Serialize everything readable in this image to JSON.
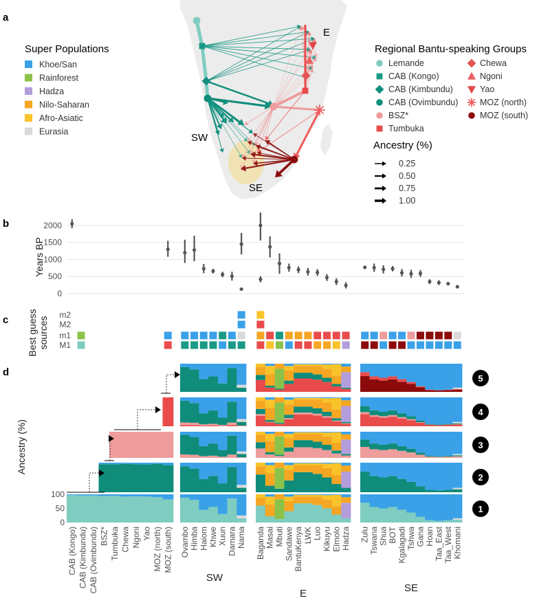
{
  "panel_labels": [
    "a",
    "b",
    "c",
    "d"
  ],
  "colors": {
    "Khoe/San": "#3aa1e8",
    "Rainforest": "#8bc34a",
    "Hadza": "#b39ddb",
    "Nilo-Saharan": "#f5a623",
    "Afro-Asiatic": "#f9c32a",
    "Eurasia": "#d9d9d9",
    "Lemande": "#7fccc0",
    "Kongo": "#1a9a86",
    "Kimbundu": "#138f7e",
    "Ovimbundu": "#0f8c7a",
    "BSZ": "#ee9c9c",
    "Tumbuka": "#e94b4b",
    "Chewa": "#e45454",
    "Ngoni": "#e86262",
    "Yao": "#e04747",
    "MOZN": "#ef5a5a",
    "MOZS": "#8b0b0b",
    "map": "#ececec",
    "ellipse": "#f3dfa2",
    "grid": "#e6e6e6",
    "point": "#555555"
  },
  "panel_a": {
    "legend1_title": "Super Populations",
    "legend1": [
      {
        "label": "Khoe/San",
        "color": "#3aa1e8"
      },
      {
        "label": "Rainforest",
        "color": "#8bc34a"
      },
      {
        "label": "Hadza",
        "color": "#b39ddb"
      },
      {
        "label": "Nilo-Saharan",
        "color": "#f5a623"
      },
      {
        "label": "Afro-Asiatic",
        "color": "#f9c32a"
      },
      {
        "label": "Eurasia",
        "color": "#d9d9d9"
      }
    ],
    "legend2_title": "Regional Bantu-speaking Groups",
    "legend2_left": [
      {
        "label": "Lemande",
        "color": "#7fccc0",
        "shape": "circle"
      },
      {
        "label": "CAB (Kongo)",
        "color": "#1a9a86",
        "shape": "square"
      },
      {
        "label": "CAB (Kimbundu)",
        "color": "#138f7e",
        "shape": "diamond"
      },
      {
        "label": "CAB (Ovimbundu)",
        "color": "#0f8c7a",
        "shape": "circle"
      },
      {
        "label": "BSZ*",
        "color": "#ee9c9c",
        "shape": "circle"
      },
      {
        "label": "Tumbuka",
        "color": "#e94b4b",
        "shape": "square"
      }
    ],
    "legend2_right": [
      {
        "label": "Chewa",
        "color": "#e45454",
        "shape": "diamond"
      },
      {
        "label": "Ngoni",
        "color": "#e86262",
        "shape": "triangle"
      },
      {
        "label": "Yao",
        "color": "#e04747",
        "shape": "triangle-down"
      },
      {
        "label": "MOZ (north)",
        "color": "#ef5a5a",
        "shape": "star"
      },
      {
        "label": "MOZ (south)",
        "color": "#8b0b0b",
        "shape": "circle"
      }
    ],
    "ancestry_title": "Ancestry (%)",
    "ancestry_levels": [
      {
        "label": "0.25",
        "value": 0.25
      },
      {
        "label": "0.50",
        "value": 0.5
      },
      {
        "label": "0.75",
        "value": 0.75
      },
      {
        "label": "1.00",
        "value": 1.0
      }
    ],
    "region_labels": [
      "E",
      "SW",
      "SE"
    ]
  },
  "chart_data": [
    {
      "type": "scatter",
      "panel": "b",
      "ylabel": "Years BP",
      "ylim": [
        0,
        2200
      ],
      "yticks": [
        0,
        500,
        1000,
        1500,
        2000
      ],
      "points": [
        {
          "group": "CAB (Kongo)",
          "y": 2050,
          "lo": 1920,
          "hi": 2180
        },
        {
          "group": "MOZ (south)",
          "y": 1300,
          "lo": 1080,
          "hi": 1550
        },
        {
          "group": "Ovambo",
          "y": 1200,
          "lo": 900,
          "hi": 1580
        },
        {
          "group": "Himba",
          "y": 1280,
          "lo": 950,
          "hi": 1700
        },
        {
          "group": "Haiom",
          "y": 730,
          "lo": 600,
          "hi": 870
        },
        {
          "group": "Khwe",
          "y": 660,
          "lo": 590,
          "hi": 730
        },
        {
          "group": "Xuun",
          "y": 560,
          "lo": 480,
          "hi": 640
        },
        {
          "group": "Damara",
          "y": 510,
          "lo": 380,
          "hi": 640
        },
        {
          "group": "Nama_a",
          "y": 1450,
          "lo": 1150,
          "hi": 1780
        },
        {
          "group": "Nama_b",
          "y": 130,
          "lo": 100,
          "hi": 160
        },
        {
          "group": "Baganda_a",
          "y": 2000,
          "lo": 1560,
          "hi": 2380
        },
        {
          "group": "Baganda_b",
          "y": 420,
          "lo": 330,
          "hi": 510
        },
        {
          "group": "Masai",
          "y": 1370,
          "lo": 1060,
          "hi": 1680
        },
        {
          "group": "Mbuti",
          "y": 880,
          "lo": 580,
          "hi": 1180
        },
        {
          "group": "Sandawe",
          "y": 760,
          "lo": 640,
          "hi": 880
        },
        {
          "group": "BantuKenya",
          "y": 700,
          "lo": 600,
          "hi": 800
        },
        {
          "group": "LWK",
          "y": 640,
          "lo": 530,
          "hi": 750
        },
        {
          "group": "Luo",
          "y": 620,
          "lo": 520,
          "hi": 720
        },
        {
          "group": "Kikuyu",
          "y": 470,
          "lo": 370,
          "hi": 570
        },
        {
          "group": "Elmolo",
          "y": 350,
          "lo": 250,
          "hi": 450
        },
        {
          "group": "Hadza",
          "y": 240,
          "lo": 150,
          "hi": 330
        },
        {
          "group": "Zulu",
          "y": 770,
          "lo": 740,
          "hi": 800
        },
        {
          "group": "Tswana",
          "y": 760,
          "lo": 640,
          "hi": 880
        },
        {
          "group": "Shua",
          "y": 710,
          "lo": 590,
          "hi": 830
        },
        {
          "group": "BOT",
          "y": 730,
          "lo": 650,
          "hi": 810
        },
        {
          "group": "Kgalagadi",
          "y": 610,
          "lo": 500,
          "hi": 720
        },
        {
          "group": "Tshwa",
          "y": 580,
          "lo": 460,
          "hi": 700
        },
        {
          "group": "Gana",
          "y": 590,
          "lo": 490,
          "hi": 690
        },
        {
          "group": "Hoan",
          "y": 350,
          "lo": 280,
          "hi": 420
        },
        {
          "group": "Taa_East",
          "y": 320,
          "lo": 250,
          "hi": 390
        },
        {
          "group": "Taa_West",
          "y": 290,
          "lo": 240,
          "hi": 340
        },
        {
          "group": "Khomani",
          "y": 200,
          "lo": 150,
          "hi": 250
        }
      ]
    },
    {
      "type": "table",
      "panel": "c",
      "ylabel": "Best guess sources",
      "rows": [
        "m2",
        "M2",
        "m1",
        "M1"
      ],
      "cells": [
        {
          "group": "CAB (Kongo)",
          "m1": "Rainforest",
          "M1": "Lemande"
        },
        {
          "group": "MOZ (south)",
          "m1": "Khoe/San",
          "M1": "Tumbuka"
        },
        {
          "group": "Ovambo",
          "m1": "Khoe/San",
          "M1": "Kongo"
        },
        {
          "group": "Himba",
          "m1": "Khoe/San",
          "M1": "Kongo"
        },
        {
          "group": "Haiom",
          "m1": "Khoe/San",
          "M1": "Kongo"
        },
        {
          "group": "Khwe",
          "m1": "Khoe/San",
          "M1": "Kongo"
        },
        {
          "group": "Xuun",
          "m1": "Kongo",
          "M1": "Khoe/San"
        },
        {
          "group": "Damara",
          "m1": "Khoe/San",
          "M1": "Kongo"
        },
        {
          "group": "Nama",
          "m2": "Khoe/San",
          "M2": "Khoe/San",
          "m1": "Eurasia",
          "M1": "Kongo"
        },
        {
          "group": "Baganda",
          "m2": "Afro-Asiatic",
          "M2": "Tumbuka",
          "m1": "Nilo-Saharan",
          "M1": "Tumbuka"
        },
        {
          "group": "Masai",
          "m1": "Tumbuka",
          "M1": "Afro-Asiatic"
        },
        {
          "group": "Mbuti",
          "m1": "Kongo",
          "M1": "Rainforest"
        },
        {
          "group": "Sandawe",
          "m1": "Nilo-Saharan",
          "M1": "Khoe/San"
        },
        {
          "group": "BantuKenya",
          "m1": "Nilo-Saharan",
          "M1": "Tumbuka"
        },
        {
          "group": "LWK",
          "m1": "Nilo-Saharan",
          "M1": "Tumbuka"
        },
        {
          "group": "Luo",
          "m1": "Tumbuka",
          "M1": "Nilo-Saharan"
        },
        {
          "group": "Kikuyu",
          "m1": "Tumbuka",
          "M1": "Nilo-Saharan"
        },
        {
          "group": "Elmolo",
          "m1": "Tumbuka",
          "M1": "Afro-Asiatic"
        },
        {
          "group": "Hadza",
          "m1": "Tumbuka",
          "M1": "Hadza"
        },
        {
          "group": "Zulu",
          "m1": "Khoe/San",
          "M1": "MOZS"
        },
        {
          "group": "Tswana",
          "m1": "Khoe/San",
          "M1": "MOZS"
        },
        {
          "group": "Shua",
          "m1": "BSZ",
          "M1": "Khoe/San"
        },
        {
          "group": "BOT",
          "m1": "Khoe/San",
          "M1": "MOZS"
        },
        {
          "group": "Kgalagadi",
          "m1": "Khoe/San",
          "M1": "MOZS"
        },
        {
          "group": "Tshwa",
          "m1": "BSZ",
          "M1": "Khoe/San"
        },
        {
          "group": "Gana",
          "m1": "MOZS",
          "M1": "Khoe/San"
        },
        {
          "group": "Hoan",
          "m1": "MOZS",
          "M1": "Khoe/San"
        },
        {
          "group": "Taa_East",
          "m1": "MOZS",
          "M1": "Khoe/San"
        },
        {
          "group": "Taa_West",
          "m1": "MOZS",
          "M1": "Khoe/San"
        },
        {
          "group": "Khomani",
          "m1": "Eurasia",
          "M1": "Khoe/San"
        }
      ]
    },
    {
      "type": "bar",
      "panel": "d",
      "ylabel": "Ancestry (%)",
      "ylim": [
        0,
        100
      ],
      "yticks": [
        0,
        50,
        100
      ],
      "stages": [
        "1",
        "2",
        "3",
        "4",
        "5"
      ],
      "groups": {
        "Bantu": [
          "CAB (Kongo)",
          "CAB (Kimbundu)",
          "CAB (Ovimbundu)",
          "BSZ*",
          "Tumbuka",
          "Chewa",
          "Ngoni",
          "Yao",
          "MOZ (north)",
          "MOZ (south)"
        ],
        "SW": [
          "Ovambo",
          "Himba",
          "Haiom",
          "Khwe",
          "Xuun",
          "Damara",
          "Nama"
        ],
        "E": [
          "Baganda",
          "Masai",
          "Mbuti",
          "Sandawe",
          "BantuKenya",
          "LWK",
          "Luo",
          "Kikuyu",
          "Elmolo",
          "Hadza"
        ],
        "SE": [
          "Zulu",
          "Tswana",
          "Shua",
          "BOT",
          "Kgalagadi",
          "Tshwa",
          "Gana",
          "Hoan",
          "Taa_East",
          "Taa_West",
          "Khomani"
        ]
      },
      "bantu_new_component": [
        {
          "stage": "1",
          "color": "Lemande",
          "groups": [
            "CAB (Kongo)",
            "CAB (Kimbundu)",
            "CAB (Ovimbundu)",
            "BSZ*",
            "Tumbuka",
            "Chewa",
            "Ngoni",
            "Yao",
            "MOZ (north)",
            "MOZ (south)"
          ],
          "values": [
            97,
            96,
            96,
            94,
            95,
            92,
            93,
            92,
            90,
            82
          ]
        },
        {
          "stage": "2",
          "color": "Ovimbundu",
          "groups": [
            "BSZ*",
            "Tumbuka",
            "Chewa",
            "Ngoni",
            "Yao",
            "MOZ (north)",
            "MOZ (south)"
          ],
          "values": [
            95,
            95,
            96,
            95,
            94,
            96,
            92
          ]
        },
        {
          "stage": "3",
          "color": "BSZ",
          "groups": [
            "Tumbuka",
            "Chewa",
            "Ngoni",
            "Yao",
            "MOZ (north)",
            "MOZ (south)"
          ],
          "values": [
            100,
            100,
            100,
            100,
            100,
            100
          ]
        },
        {
          "stage": "4",
          "color": "Tumbuka",
          "groups": [
            "MOZ (south)"
          ],
          "values": [
            100
          ]
        }
      ],
      "bantu_on": {
        "2": 3,
        "3": 4,
        "4": 9
      },
      "target_bantu": {
        "SW": [
          88,
          80,
          45,
          55,
          30,
          85,
          15
        ],
        "E": [
          60,
          22,
          12,
          40,
          68,
          68,
          62,
          50,
          28,
          15
        ],
        "SE": [
          70,
          55,
          50,
          55,
          45,
          35,
          20,
          8,
          6,
          8,
          10
        ]
      },
      "target_khoe": {
        "SW": [
          12,
          20,
          55,
          45,
          70,
          15,
          75
        ],
        "E": [
          0,
          0,
          0,
          8,
          2,
          2,
          2,
          3,
          2,
          10
        ],
        "SE": [
          30,
          45,
          50,
          45,
          55,
          65,
          80,
          92,
          94,
          92,
          85
        ]
      },
      "target_other": {
        "E": [
          [
            [
              "Nilo-Saharan",
              28
            ],
            [
              "Afro-Asiatic",
              12
            ]
          ],
          [
            [
              "Nilo-Saharan",
              42
            ],
            [
              "Afro-Asiatic",
              28
            ],
            [
              "Khoe/San",
              8
            ]
          ],
          [
            [
              "Rainforest",
              70
            ],
            [
              "Nilo-Saharan",
              18
            ]
          ],
          [
            [
              "Nilo-Saharan",
              36
            ],
            [
              "Afro-Asiatic",
              16
            ]
          ],
          [
            [
              "Nilo-Saharan",
              24
            ],
            [
              "Afro-Asiatic",
              6
            ]
          ],
          [
            [
              "Nilo-Saharan",
              24
            ],
            [
              "Afro-Asiatic",
              6
            ]
          ],
          [
            [
              "Nilo-Saharan",
              30
            ],
            [
              "Afro-Asiatic",
              6
            ]
          ],
          [
            [
              "Nilo-Saharan",
              32
            ],
            [
              "Afro-Asiatic",
              15
            ]
          ],
          [
            [
              "Nilo-Saharan",
              30
            ],
            [
              "Afro-Asiatic",
              40
            ]
          ],
          [
            [
              "Hadza",
              55
            ],
            [
              "Nilo-Saharan",
              20
            ]
          ]
        ],
        "SW": [
          [],
          [],
          [],
          [],
          [],
          [],
          [
            [
              "Eurasia",
              10
            ]
          ]
        ],
        "SE": [
          [],
          [],
          [],
          [],
          [],
          [],
          [],
          [],
          [],
          [],
          [
            [
              "Eurasia",
              5
            ]
          ]
        ]
      },
      "stage_badges": [
        "5",
        "4",
        "3",
        "2",
        "1"
      ]
    }
  ],
  "region_axis_titles": [
    "SW",
    "E",
    "SE"
  ]
}
